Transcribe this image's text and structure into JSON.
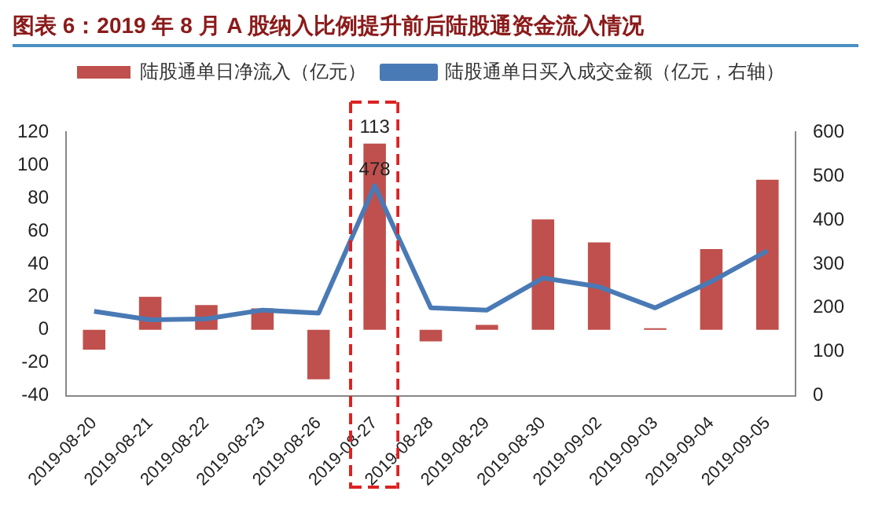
{
  "chart_data": {
    "type": "bar",
    "title": "图表 6：2019 年 8 月 A 股纳入比例提升前后陆股通资金流入情况",
    "categories": [
      "2019-08-20",
      "2019-08-21",
      "2019-08-22",
      "2019-08-23",
      "2019-08-26",
      "2019-08-27",
      "2019-08-28",
      "2019-08-29",
      "2019-08-30",
      "2019-09-02",
      "2019-09-03",
      "2019-09-04",
      "2019-09-05"
    ],
    "series": [
      {
        "name": "陆股通单日净流入（亿元）",
        "color": "#c0504d",
        "values": [
          -12,
          20,
          15,
          13,
          -30,
          113,
          -7,
          3,
          67,
          53,
          1,
          49,
          91
        ],
        "value_labels": [
          null,
          null,
          null,
          null,
          null,
          "113",
          null,
          null,
          null,
          null,
          null,
          null,
          null
        ]
      },
      {
        "name": "陆股通单日买入成交金额（亿元，右轴）",
        "type": "line",
        "axis": "y2",
        "color": "#4a7ab5",
        "values": [
          192,
          173,
          175,
          195,
          188,
          478,
          200,
          195,
          268,
          248,
          200,
          260,
          330
        ],
        "value_labels": [
          null,
          null,
          null,
          null,
          null,
          "478",
          null,
          null,
          null,
          null,
          null,
          null,
          null
        ]
      }
    ],
    "ylim": [
      -40,
      120
    ],
    "yticks": [
      -40,
      -20,
      0,
      20,
      40,
      60,
      80,
      100,
      120
    ],
    "y2lim": [
      0,
      600
    ],
    "y2ticks": [
      0,
      100,
      200,
      300,
      400,
      500,
      600
    ],
    "legend": "top",
    "grid": false,
    "marker": "none"
  }
}
